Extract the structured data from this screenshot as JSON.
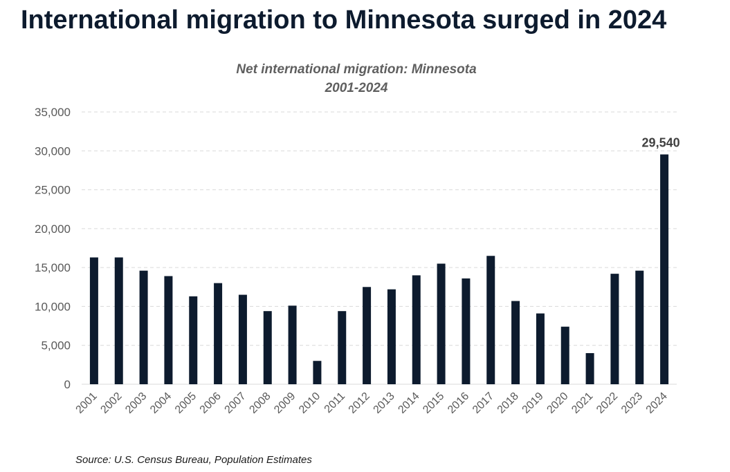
{
  "headline": "International migration to Minnesota surged in 2024",
  "source": "Source: U.S. Census Bureau, Population Estimates",
  "colors": {
    "bar": "#0d1b2e",
    "headline": "#0d1b2e",
    "subtitle": "#5f5f5f",
    "axis_text": "#595959",
    "gridline": "#d9d9d9"
  },
  "chart_data": {
    "type": "bar",
    "title": "Net international migration: Minnesota",
    "subtitle": "2001-2024",
    "xlabel": "",
    "ylabel": "",
    "ylim": [
      0,
      35000
    ],
    "yticks": [
      0,
      5000,
      10000,
      15000,
      20000,
      25000,
      30000,
      35000
    ],
    "ytick_labels": [
      "0",
      "5,000",
      "10,000",
      "15,000",
      "20,000",
      "25,000",
      "30,000",
      "35,000"
    ],
    "grid": "horizontal-dashed",
    "legend": "none",
    "categories": [
      "2001",
      "2002",
      "2003",
      "2004",
      "2005",
      "2006",
      "2007",
      "2008",
      "2009",
      "2010",
      "2011",
      "2012",
      "2013",
      "2014",
      "2015",
      "2016",
      "2017",
      "2018",
      "2019",
      "2020",
      "2021",
      "2022",
      "2023",
      "2024"
    ],
    "values": [
      16300,
      16300,
      14600,
      13900,
      11300,
      13000,
      11500,
      9400,
      10100,
      3000,
      9400,
      12500,
      12200,
      14000,
      15500,
      13600,
      16500,
      10700,
      9100,
      7400,
      4000,
      14200,
      14600,
      29540
    ],
    "data_labels": [
      {
        "category": "2024",
        "text": "29,540"
      }
    ]
  }
}
